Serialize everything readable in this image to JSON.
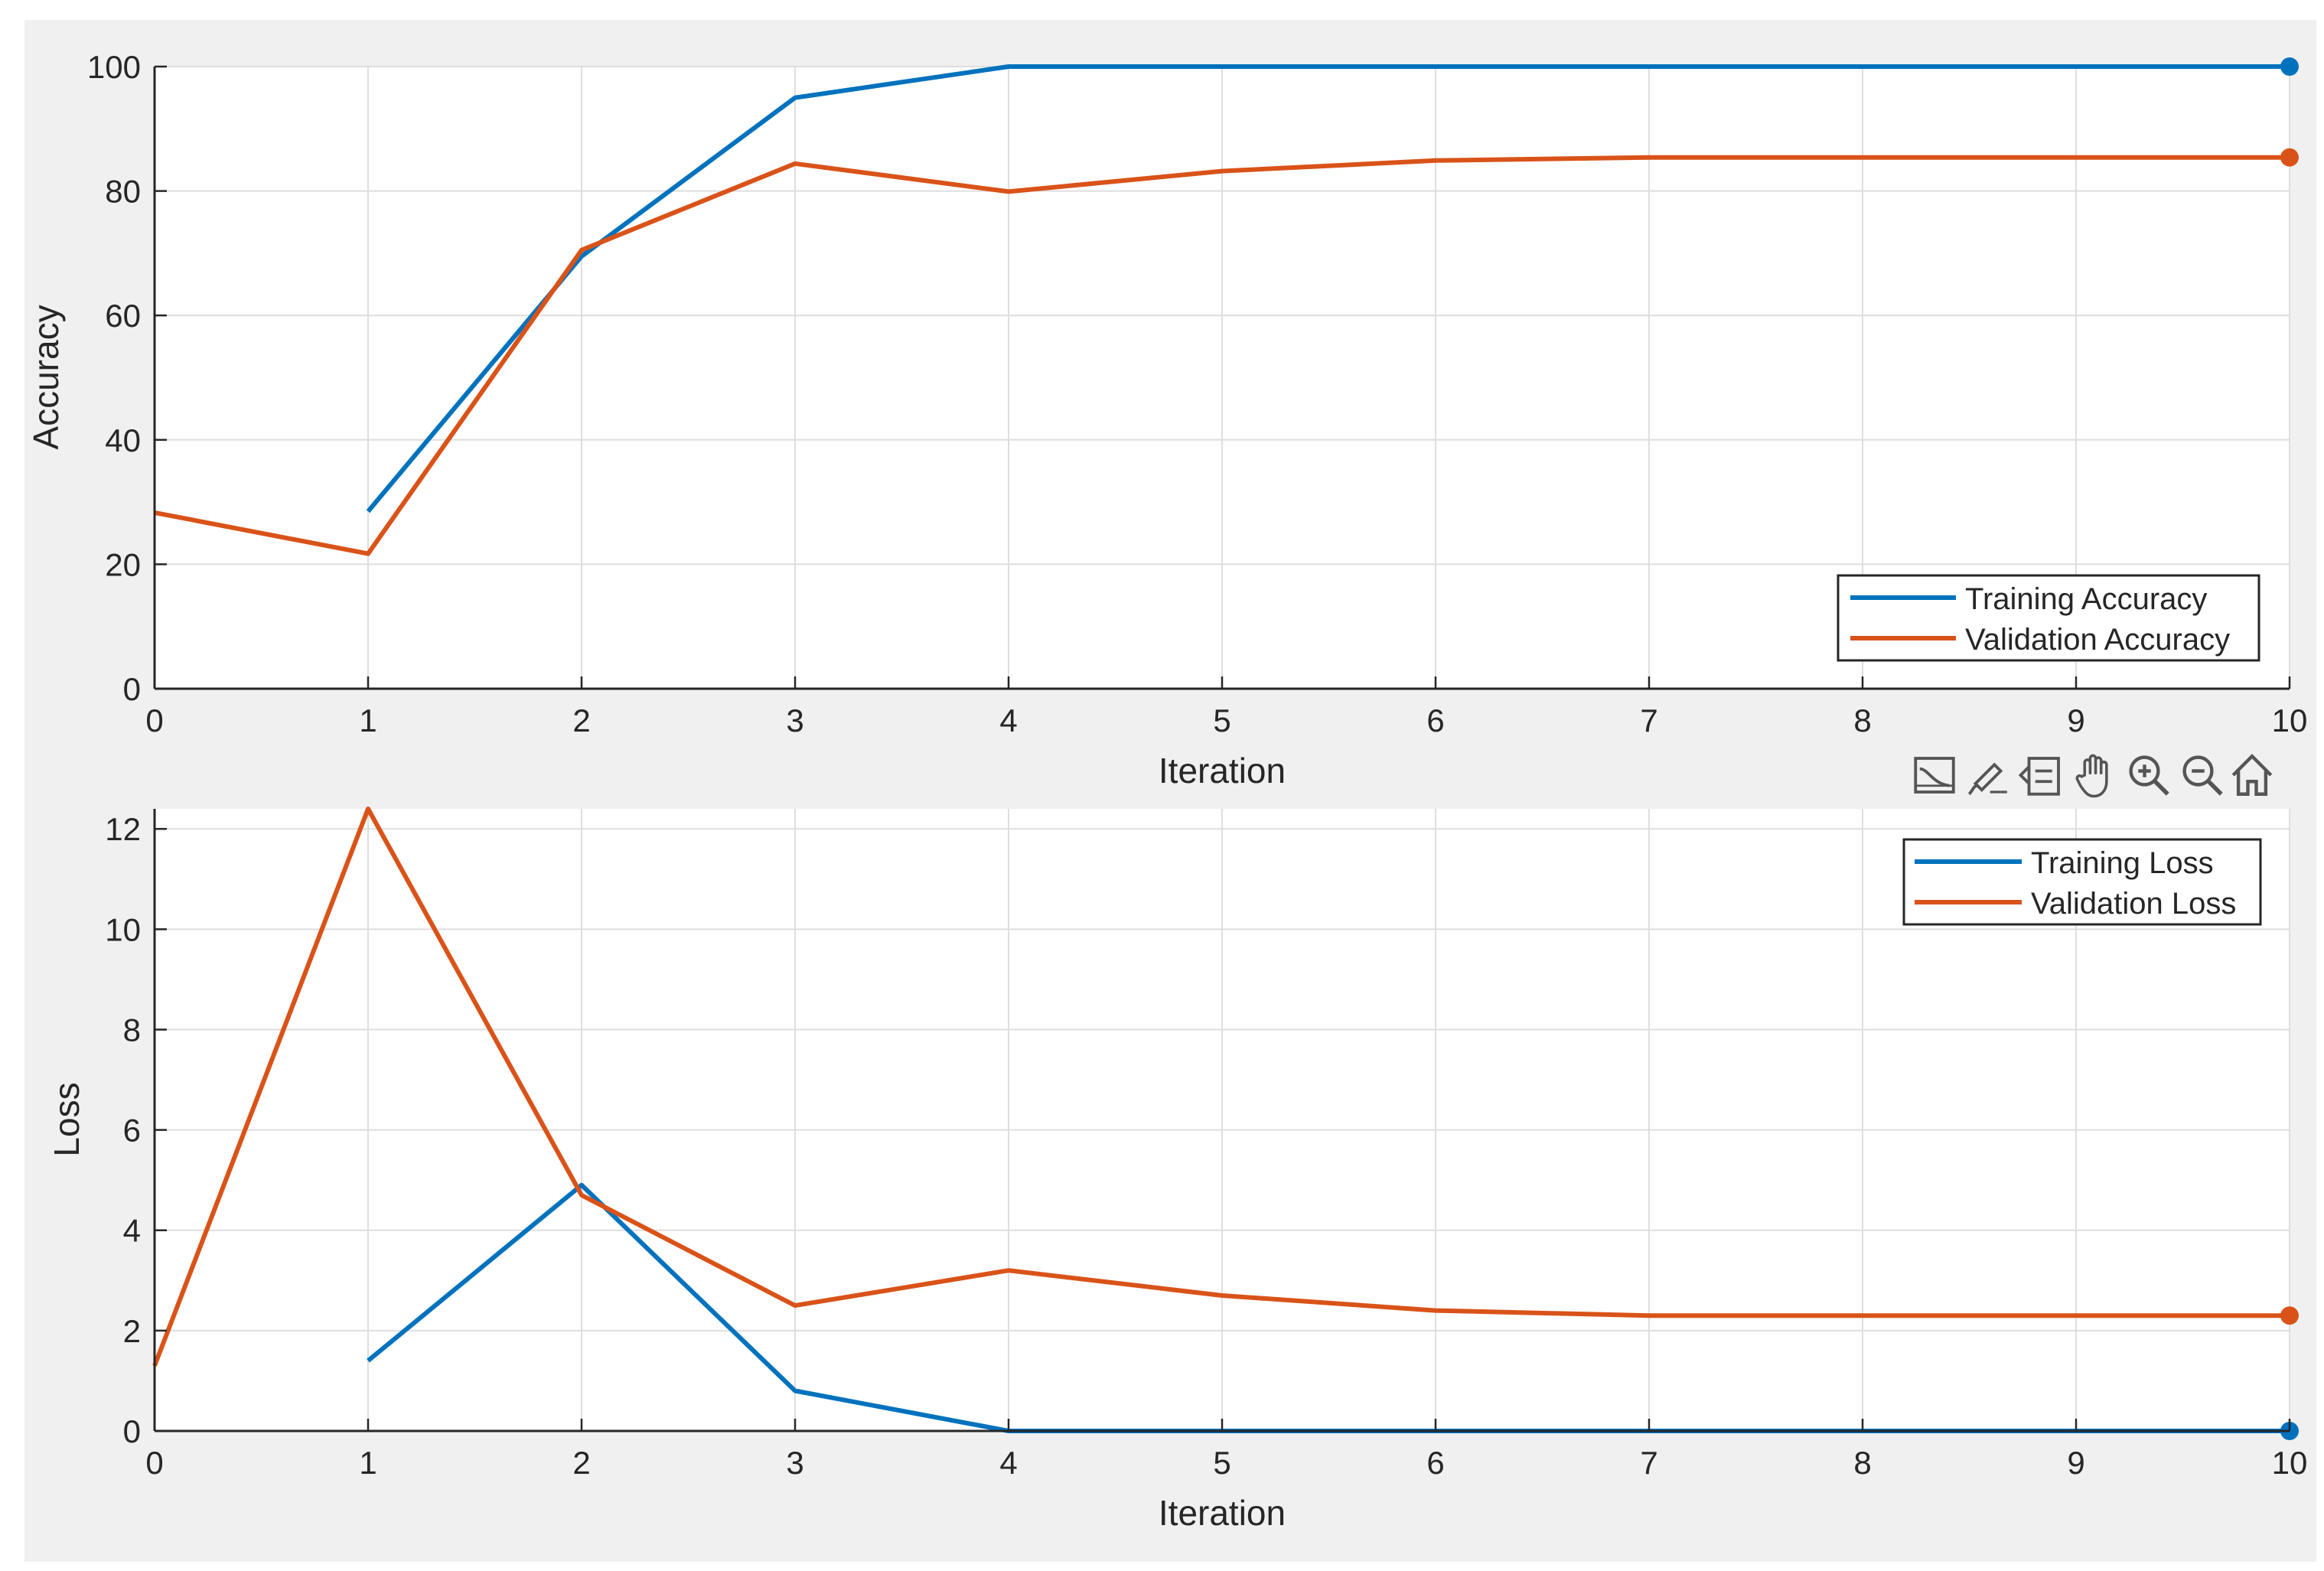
{
  "chart_data": [
    {
      "type": "line",
      "title": "",
      "xlabel": "Iteration",
      "ylabel": "Accuracy",
      "xlim": [
        0,
        10
      ],
      "ylim": [
        0,
        100
      ],
      "xticks": [
        "0",
        "1",
        "2",
        "3",
        "4",
        "5",
        "6",
        "7",
        "8",
        "9",
        "10"
      ],
      "yticks": [
        "0",
        "20",
        "40",
        "60",
        "80",
        "100"
      ],
      "grid": true,
      "legend_position": "bottom-right",
      "series": [
        {
          "name": "Training Accuracy",
          "color": "#0072BD",
          "x": [
            1,
            2,
            3,
            4,
            5,
            6,
            7,
            8,
            9,
            10
          ],
          "values": [
            28.5,
            69.5,
            95,
            100,
            100,
            100,
            100,
            100,
            100,
            100
          ],
          "end_marker": true
        },
        {
          "name": "Validation Accuracy",
          "color": "#D95319",
          "x": [
            0,
            1,
            2,
            3,
            4,
            5,
            6,
            7,
            8,
            9,
            10
          ],
          "values": [
            28.3,
            21.7,
            70.5,
            84.4,
            79.9,
            83.2,
            84.9,
            85.4,
            85.4,
            85.4,
            85.4
          ],
          "end_marker": true
        }
      ]
    },
    {
      "type": "line",
      "title": "",
      "xlabel": "Iteration",
      "ylabel": "Loss",
      "xlim": [
        0,
        10
      ],
      "ylim": [
        0,
        12.4
      ],
      "xticks": [
        "0",
        "1",
        "2",
        "3",
        "4",
        "5",
        "6",
        "7",
        "8",
        "9",
        "10"
      ],
      "yticks": [
        "0",
        "2",
        "4",
        "6",
        "8",
        "10",
        "12"
      ],
      "grid": true,
      "legend_position": "top-right",
      "series": [
        {
          "name": "Training Loss",
          "color": "#0072BD",
          "x": [
            1,
            2,
            3,
            4,
            5,
            6,
            7,
            8,
            9,
            10
          ],
          "values": [
            1.4,
            4.9,
            0.8,
            0.0,
            0.0,
            0.0,
            0.0,
            0.0,
            0.0,
            0.0
          ],
          "end_marker": true
        },
        {
          "name": "Validation Loss",
          "color": "#D95319",
          "x": [
            0,
            1,
            2,
            3,
            4,
            5,
            6,
            7,
            8,
            9,
            10
          ],
          "values": [
            1.3,
            12.4,
            4.7,
            2.5,
            3.2,
            2.7,
            2.4,
            2.3,
            2.3,
            2.3,
            2.3
          ],
          "end_marker": true
        }
      ]
    }
  ],
  "toolbar": {
    "icons": [
      "data-tips-icon",
      "brush-icon",
      "legend-icon",
      "pan-icon",
      "zoom-in-icon",
      "zoom-out-icon",
      "home-icon"
    ]
  },
  "colors": {
    "figure_background": "#F0F0F0",
    "axes_background": "#FFFFFF",
    "grid": "#DEDEDE",
    "axis": "#262626"
  }
}
